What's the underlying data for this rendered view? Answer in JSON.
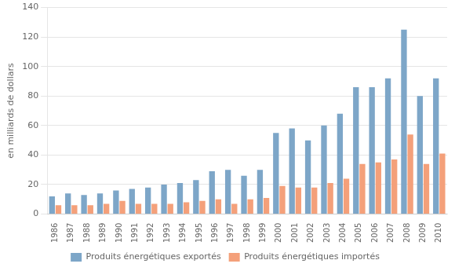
{
  "chart_data": {
    "type": "bar",
    "ylabel": "en milliards de dollars",
    "categories": [
      "1986",
      "1987",
      "1988",
      "1989",
      "1990",
      "1991",
      "1992",
      "1993",
      "1994",
      "1995",
      "1996",
      "1997",
      "1998",
      "1999",
      "2000",
      "2001",
      "2002",
      "2003",
      "2004",
      "2005",
      "2006",
      "2007",
      "2008",
      "2009",
      "2010"
    ],
    "series": [
      {
        "name": "Produits énergétiques exportés",
        "color": "#7da6c8",
        "values": [
          12,
          14,
          13,
          14,
          16,
          17,
          18,
          20,
          21,
          23,
          29,
          30,
          26,
          30,
          55,
          58,
          50,
          60,
          68,
          86,
          86,
          92,
          125,
          80,
          92
        ]
      },
      {
        "name": "Produits énergétiques importés",
        "color": "#f4a07a",
        "values": [
          6,
          6,
          6,
          7,
          9,
          7,
          7,
          7,
          8,
          9,
          10,
          7,
          10,
          11,
          19,
          18,
          18,
          21,
          24,
          34,
          35,
          37,
          54,
          34,
          41
        ]
      }
    ],
    "ylim": [
      0,
      140
    ],
    "yticks": [
      0,
      20,
      40,
      60,
      80,
      100,
      120,
      140
    ],
    "grid": true,
    "legend": "bottom"
  }
}
